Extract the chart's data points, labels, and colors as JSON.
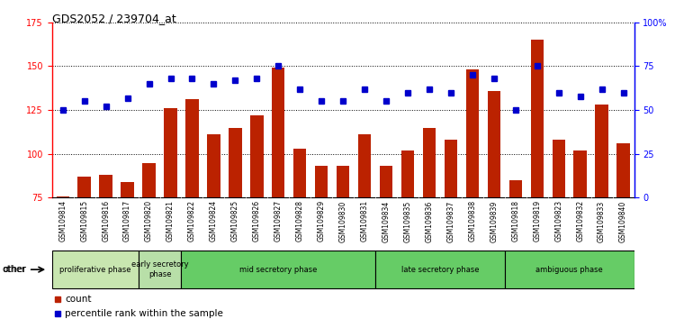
{
  "title": "GDS2052 / 239704_at",
  "samples": [
    "GSM109814",
    "GSM109815",
    "GSM109816",
    "GSM109817",
    "GSM109820",
    "GSM109821",
    "GSM109822",
    "GSM109824",
    "GSM109825",
    "GSM109826",
    "GSM109827",
    "GSM109828",
    "GSM109829",
    "GSM109830",
    "GSM109831",
    "GSM109834",
    "GSM109835",
    "GSM109836",
    "GSM109837",
    "GSM109838",
    "GSM109839",
    "GSM109818",
    "GSM109819",
    "GSM109823",
    "GSM109832",
    "GSM109833",
    "GSM109840"
  ],
  "counts": [
    76,
    87,
    88,
    84,
    95,
    126,
    131,
    111,
    115,
    122,
    149,
    103,
    93,
    93,
    111,
    93,
    102,
    115,
    108,
    148,
    136,
    85,
    165,
    108,
    102,
    128,
    106
  ],
  "percentiles": [
    50,
    55,
    52,
    57,
    65,
    68,
    68,
    65,
    67,
    68,
    75,
    62,
    55,
    55,
    62,
    55,
    60,
    62,
    60,
    70,
    68,
    50,
    75,
    60,
    58,
    62,
    60
  ],
  "phases": [
    {
      "name": "proliferative phase",
      "start": 0,
      "end": 4,
      "color": "#c8e6b0"
    },
    {
      "name": "early secretory\nphase",
      "start": 4,
      "end": 6,
      "color": "#b8dfa8"
    },
    {
      "name": "mid secretory phase",
      "start": 6,
      "end": 15,
      "color": "#66cc66"
    },
    {
      "name": "late secretory phase",
      "start": 15,
      "end": 21,
      "color": "#66cc66"
    },
    {
      "name": "ambiguous phase",
      "start": 21,
      "end": 27,
      "color": "#66cc66"
    }
  ],
  "bar_color": "#bb2200",
  "dot_color": "#0000cc",
  "ylim_left": [
    75,
    175
  ],
  "ylim_right": [
    0,
    100
  ],
  "yticks_left": [
    75,
    100,
    125,
    150,
    175
  ],
  "yticks_right": [
    0,
    25,
    50,
    75,
    100
  ],
  "ytick_labels_right": [
    "0",
    "25",
    "50",
    "75",
    "100%"
  ],
  "plot_bg": "#ffffff",
  "tick_area_bg": "#cccccc",
  "base_value": 75
}
